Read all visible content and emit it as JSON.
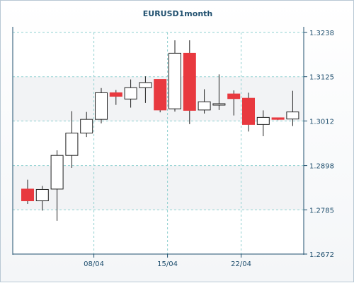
{
  "chart_data": {
    "type": "candlestick",
    "title": "EURUSD1month",
    "ylim": [
      1.2672,
      1.3238
    ],
    "y_ticks": [
      "1.3238",
      "1.3125",
      "1.3012",
      "1.2898",
      "1.2785",
      "1.2672"
    ],
    "x_ticks": [
      {
        "label": "08/04",
        "index": 4.5
      },
      {
        "label": "15/04",
        "index": 9.5
      },
      {
        "label": "22/04",
        "index": 14.5
      }
    ],
    "grid": true,
    "colors": {
      "bearish_fill": "#e8393f",
      "bullish_fill": "#ffffff",
      "candle_stroke": "#222222",
      "grid": "#8fd0d0",
      "axis": "#1f4f6e",
      "text": "#1f4f6e"
    },
    "candles": [
      {
        "open": 1.2838,
        "high": 1.2862,
        "low": 1.28,
        "close": 1.2808
      },
      {
        "open": 1.2808,
        "high": 1.2846,
        "low": 1.2783,
        "close": 1.2837
      },
      {
        "open": 1.2838,
        "high": 1.2937,
        "low": 1.2757,
        "close": 1.2924
      },
      {
        "open": 1.2924,
        "high": 1.3037,
        "low": 1.2892,
        "close": 1.2981
      },
      {
        "open": 1.2981,
        "high": 1.3035,
        "low": 1.2971,
        "close": 1.3016
      },
      {
        "open": 1.3016,
        "high": 1.3096,
        "low": 1.3006,
        "close": 1.3084
      },
      {
        "open": 1.3084,
        "high": 1.3091,
        "low": 1.3053,
        "close": 1.3075
      },
      {
        "open": 1.3068,
        "high": 1.3118,
        "low": 1.3046,
        "close": 1.3097
      },
      {
        "open": 1.3097,
        "high": 1.3126,
        "low": 1.3058,
        "close": 1.311
      },
      {
        "open": 1.3118,
        "high": 1.3118,
        "low": 1.3034,
        "close": 1.304
      },
      {
        "open": 1.3043,
        "high": 1.3218,
        "low": 1.3036,
        "close": 1.3185
      },
      {
        "open": 1.3185,
        "high": 1.3218,
        "low": 1.3004,
        "close": 1.3039
      },
      {
        "open": 1.304,
        "high": 1.3093,
        "low": 1.3031,
        "close": 1.3061
      },
      {
        "open": 1.3056,
        "high": 1.3131,
        "low": 1.304,
        "close": 1.3056
      },
      {
        "open": 1.3081,
        "high": 1.309,
        "low": 1.3026,
        "close": 1.3069
      },
      {
        "open": 1.307,
        "high": 1.3084,
        "low": 1.2985,
        "close": 1.3003
      },
      {
        "open": 1.3003,
        "high": 1.3039,
        "low": 1.2973,
        "close": 1.3021
      },
      {
        "open": 1.302,
        "high": 1.302,
        "low": 1.3014,
        "close": 1.3016
      },
      {
        "open": 1.3017,
        "high": 1.3089,
        "low": 1.2999,
        "close": 1.3035
      }
    ]
  }
}
